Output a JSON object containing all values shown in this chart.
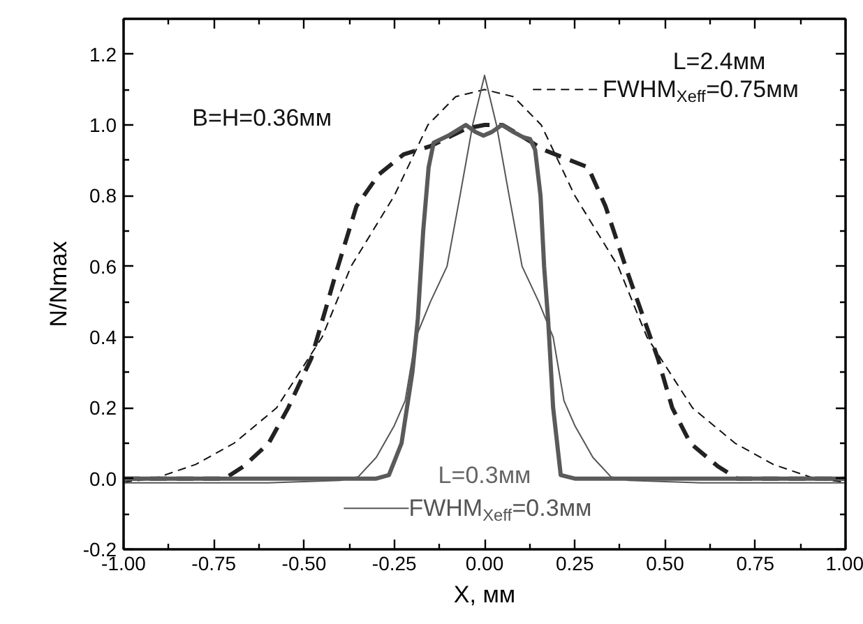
{
  "chart_data": {
    "type": "line",
    "xlabel": "X, мм",
    "ylabel": "N/Nmax",
    "xlim": [
      -1,
      1
    ],
    "ylim": [
      -0.2,
      1.3
    ],
    "xticks": [
      {
        "value": -1,
        "label": "-1.00"
      },
      {
        "value": -0.875,
        "label": null
      },
      {
        "value": -0.75,
        "label": "-0.75"
      },
      {
        "value": -0.625,
        "label": null
      },
      {
        "value": -0.5,
        "label": "-0.50"
      },
      {
        "value": -0.375,
        "label": null
      },
      {
        "value": -0.25,
        "label": "-0.25"
      },
      {
        "value": -0.125,
        "label": null
      },
      {
        "value": 0,
        "label": "0.00"
      },
      {
        "value": 0.125,
        "label": null
      },
      {
        "value": 0.25,
        "label": "0.25"
      },
      {
        "value": 0.375,
        "label": null
      },
      {
        "value": 0.5,
        "label": "0.50"
      },
      {
        "value": 0.625,
        "label": null
      },
      {
        "value": 0.75,
        "label": "0.75"
      },
      {
        "value": 0.875,
        "label": null
      },
      {
        "value": 1,
        "label": "1.00"
      }
    ],
    "yticks": [
      -0.2,
      {
        "value": -0.1,
        "label": null
      },
      {
        "value": 0,
        "label": "0.0"
      },
      {
        "value": 0.1,
        "label": null
      },
      0.2,
      {
        "value": 0.3,
        "label": null
      },
      0.4,
      {
        "value": 0.5,
        "label": null
      },
      0.6,
      {
        "value": 0.7,
        "label": null
      },
      0.8,
      {
        "value": 0.9,
        "label": null
      },
      {
        "value": 1,
        "label": "1.0"
      },
      {
        "value": 1.1,
        "label": null
      },
      1.2
    ],
    "grid": false,
    "legend": "bottom right",
    "annotations": [
      "L=2.4мм",
      "L=0.3мм",
      "B=H=0.36мм"
    ],
    "series": [
      {
        "name": "FWHM$_{Xeff}$=0.75мм",
        "color": "#111111",
        "line_style": "dashed",
        "x": [
          -1,
          -0.915,
          -0.8,
          -0.694,
          -0.576,
          -0.45,
          -0.37,
          -0.25,
          -0.157,
          -0.08,
          0,
          0.08,
          0.157,
          0.25,
          0.37,
          0.45,
          0.576,
          0.694,
          0.8,
          0.915,
          1
        ],
        "values": [
          -0.01,
          0,
          0.04,
          0.1,
          0.2,
          0.4,
          0.6,
          0.8,
          1.0,
          1.08,
          1.1,
          1.08,
          1.0,
          0.8,
          0.6,
          0.4,
          0.2,
          0.1,
          0.04,
          0,
          -0.01
        ]
      },
      {
        "name": "FWHM$_{Xeff}$=0.3мм",
        "color": "#555555",
        "line_style": "solid",
        "x": [
          -1,
          -0.6,
          -0.4,
          -0.35,
          -0.3,
          -0.25,
          -0.22,
          -0.19,
          -0.15,
          -0.104,
          -0.068,
          -0.033,
          0,
          0.033,
          0.068,
          0.104,
          0.15,
          0.19,
          0.22,
          0.25,
          0.3,
          0.35,
          0.4,
          0.6,
          1
        ],
        "values": [
          -0.012,
          -0.012,
          -0.005,
          0.005,
          0.06,
          0.15,
          0.22,
          0.4,
          0.5,
          0.6,
          0.8,
          1.0,
          1.14,
          1.0,
          0.8,
          0.6,
          0.5,
          0.4,
          0.22,
          0.15,
          0.06,
          0.005,
          -0.005,
          -0.012,
          -0.012
        ]
      },
      {
        "color": "#222222",
        "line_style": "dashed",
        "x": [
          -1,
          -0.72,
          -0.667,
          -0.598,
          -0.544,
          -0.48,
          -0.44,
          -0.412,
          -0.355,
          -0.293,
          -0.224,
          -0.15,
          -0.05,
          0,
          0.05,
          0.1,
          0.163,
          0.287,
          0.335,
          0.397,
          0.48,
          0.52,
          0.57,
          0.646,
          0.7,
          1
        ],
        "values": [
          0,
          0,
          0.035,
          0.1,
          0.2,
          0.34,
          0.48,
          0.58,
          0.77,
          0.86,
          0.917,
          0.94,
          0.99,
          1.0,
          1.0,
          0.97,
          0.93,
          0.88,
          0.77,
          0.58,
          0.34,
          0.2,
          0.1,
          0.035,
          0,
          0
        ]
      },
      {
        "color": "#5a5a5a",
        "line_style": "solid",
        "x": [
          -1,
          -0.3,
          -0.265,
          -0.23,
          -0.2,
          -0.185,
          -0.17,
          -0.155,
          -0.141,
          -0.1,
          -0.052,
          -0.025,
          -0.003,
          0.02,
          0.048,
          0.08,
          0.107,
          0.126,
          0.14,
          0.155,
          0.165,
          0.176,
          0.19,
          0.211,
          0.25,
          1
        ],
        "values": [
          0,
          0,
          0.01,
          0.1,
          0.3,
          0.45,
          0.7,
          0.88,
          0.95,
          0.97,
          1.0,
          0.98,
          0.97,
          0.98,
          1.0,
          0.98,
          0.965,
          0.96,
          0.93,
          0.8,
          0.6,
          0.45,
          0.2,
          0.01,
          0,
          0
        ]
      }
    ]
  }
}
